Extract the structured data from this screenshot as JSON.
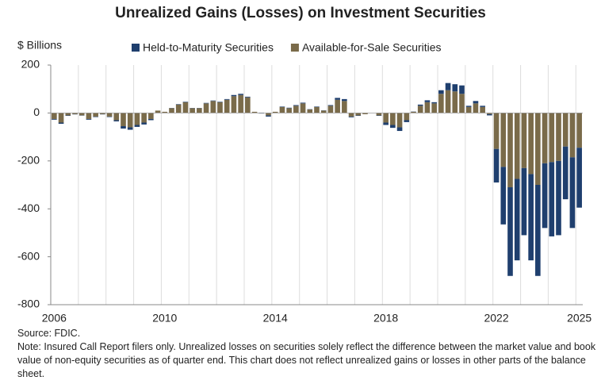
{
  "chart_data": {
    "type": "stacked_bar",
    "title": "Unrealized Gains (Losses) on Investment Securities",
    "y_label": "$ Billions",
    "source": "Source: FDIC.",
    "note": "Note: Insured Call Report filers only. Unrealized losses on securities solely reflect the difference between the market value and book value of non-equity securities as of quarter end. This chart does not reflect unrealized gains or losses in other parts of the balance sheet.",
    "categories": [
      "2006",
      null,
      null,
      null,
      null,
      null,
      null,
      null,
      null,
      null,
      null,
      null,
      null,
      null,
      null,
      null,
      "2010",
      null,
      null,
      null,
      null,
      null,
      null,
      null,
      null,
      null,
      null,
      null,
      null,
      null,
      null,
      null,
      "2014",
      null,
      null,
      null,
      null,
      null,
      null,
      null,
      null,
      null,
      null,
      null,
      null,
      null,
      null,
      null,
      "2018",
      null,
      null,
      null,
      null,
      null,
      null,
      null,
      null,
      null,
      null,
      null,
      null,
      null,
      null,
      null,
      "2022",
      null,
      null,
      null,
      null,
      null,
      null,
      null,
      null,
      null,
      null,
      null,
      "2025"
    ],
    "series": [
      {
        "name": "Held-to-Maturity Securities",
        "color": "#1f3f6e",
        "values": [
          -3,
          -5,
          -2,
          -1,
          -1,
          -3,
          -2,
          -1,
          -2,
          -5,
          -10,
          -10,
          -8,
          -8,
          -5,
          0,
          0,
          1,
          2,
          2,
          1,
          1,
          2,
          2,
          2,
          3,
          5,
          5,
          3,
          0,
          -2,
          -5,
          0,
          2,
          2,
          3,
          3,
          1,
          2,
          1,
          3,
          8,
          8,
          -3,
          -2,
          0,
          0,
          -2,
          -10,
          -12,
          -15,
          -8,
          1,
          5,
          8,
          5,
          15,
          30,
          30,
          35,
          5,
          10,
          5,
          -5,
          -140,
          -240,
          -370,
          -340,
          -280,
          -360,
          -380,
          -270,
          -310,
          -310,
          -220,
          -295,
          -250
        ]
      },
      {
        "name": "Available-for-Sale Securities",
        "color": "#7a6b4a",
        "values": [
          -25,
          -40,
          -10,
          -5,
          -10,
          -25,
          -15,
          -5,
          -15,
          -30,
          -55,
          -60,
          -50,
          -40,
          -25,
          10,
          5,
          20,
          35,
          45,
          20,
          20,
          40,
          50,
          45,
          55,
          70,
          75,
          65,
          5,
          0,
          -10,
          5,
          25,
          20,
          30,
          40,
          15,
          25,
          10,
          30,
          55,
          50,
          -15,
          -10,
          -5,
          0,
          -10,
          -40,
          -50,
          -60,
          -30,
          5,
          30,
          45,
          40,
          80,
          95,
          90,
          80,
          25,
          40,
          25,
          -5,
          -150,
          -225,
          -310,
          -275,
          -230,
          -255,
          -300,
          -210,
          -205,
          -200,
          -140,
          -185,
          -145
        ]
      }
    ],
    "ylim": [
      -800,
      200
    ],
    "yticks": [
      -800,
      -600,
      -400,
      -200,
      0,
      200
    ]
  }
}
